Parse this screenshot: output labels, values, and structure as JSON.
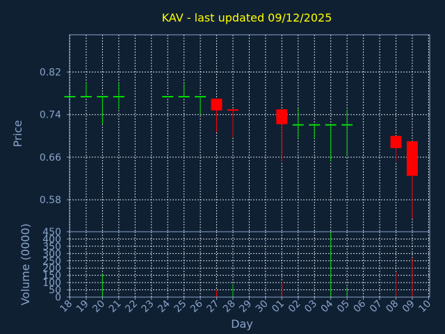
{
  "colors": {
    "background": "#0f2033",
    "title": "#ffff00",
    "text": "#8aa4c8",
    "up": "#00e000",
    "down": "#ff0000",
    "grid": "#ffffff"
  },
  "chart_data": [
    {
      "type": "candlestick",
      "title": "KAV - last updated 09/12/2025",
      "ylabel": "Price",
      "ylim": [
        0.52,
        0.89
      ],
      "yticks": [
        0.58,
        0.66,
        0.74,
        0.82
      ],
      "ytick_labels": [
        "0.58",
        "0.66",
        "0.74",
        "0.82"
      ],
      "grid": true,
      "candles": [
        {
          "x": 0,
          "open": 0.775,
          "high": 0.775,
          "low": 0.775,
          "close": 0.775
        },
        {
          "x": 1,
          "open": 0.775,
          "high": 0.8,
          "low": 0.775,
          "close": 0.775
        },
        {
          "x": 2,
          "open": 0.775,
          "high": 0.775,
          "low": 0.722,
          "close": 0.775
        },
        {
          "x": 3,
          "open": 0.775,
          "high": 0.8,
          "low": 0.75,
          "close": 0.775
        },
        {
          "x": 6,
          "open": 0.775,
          "high": 0.775,
          "low": 0.775,
          "close": 0.775
        },
        {
          "x": 7,
          "open": 0.775,
          "high": 0.8,
          "low": 0.775,
          "close": 0.775
        },
        {
          "x": 8,
          "open": 0.775,
          "high": 0.775,
          "low": 0.74,
          "close": 0.775
        },
        {
          "x": 9,
          "open": 0.77,
          "high": 0.77,
          "low": 0.707,
          "close": 0.748
        },
        {
          "x": 10,
          "open": 0.75,
          "high": 0.75,
          "low": 0.697,
          "close": 0.748
        },
        {
          "x": 13,
          "open": 0.75,
          "high": 0.75,
          "low": 0.652,
          "close": 0.722
        },
        {
          "x": 14,
          "open": 0.722,
          "high": 0.752,
          "low": 0.695,
          "close": 0.722
        },
        {
          "x": 15,
          "open": 0.722,
          "high": 0.722,
          "low": 0.695,
          "close": 0.722
        },
        {
          "x": 16,
          "open": 0.722,
          "high": 0.722,
          "low": 0.652,
          "close": 0.722
        },
        {
          "x": 17,
          "open": 0.722,
          "high": 0.75,
          "low": 0.663,
          "close": 0.722
        },
        {
          "x": 20,
          "open": 0.7,
          "high": 0.7,
          "low": 0.652,
          "close": 0.677
        },
        {
          "x": 21,
          "open": 0.69,
          "high": 0.69,
          "low": 0.545,
          "close": 0.625
        }
      ]
    },
    {
      "type": "bar",
      "ylabel": "Volume (0000)",
      "xlabel": "Day",
      "ylim": [
        0,
        450
      ],
      "yticks": [
        0,
        50,
        100,
        150,
        200,
        250,
        300,
        350,
        400,
        450
      ],
      "ytick_labels": [
        "0",
        "50",
        "100",
        "150",
        "200",
        "250",
        "300",
        "350",
        "400",
        "450"
      ],
      "grid": true,
      "x_categories": [
        "18",
        "19",
        "20",
        "21",
        "22",
        "23",
        "24",
        "25",
        "26",
        "27",
        "28",
        "29",
        "30",
        "01",
        "02",
        "03",
        "04",
        "05",
        "06",
        "07",
        "08",
        "09",
        "10"
      ],
      "bars": [
        {
          "x": 2,
          "value": 160,
          "dir": "up"
        },
        {
          "x": 9,
          "value": 50,
          "dir": "down"
        },
        {
          "x": 10,
          "value": 90,
          "dir": "up"
        },
        {
          "x": 13,
          "value": 105,
          "dir": "down"
        },
        {
          "x": 16,
          "value": 450,
          "dir": "up"
        },
        {
          "x": 17,
          "value": 70,
          "dir": "up"
        },
        {
          "x": 20,
          "value": 175,
          "dir": "down"
        },
        {
          "x": 21,
          "value": 270,
          "dir": "down"
        }
      ]
    }
  ]
}
